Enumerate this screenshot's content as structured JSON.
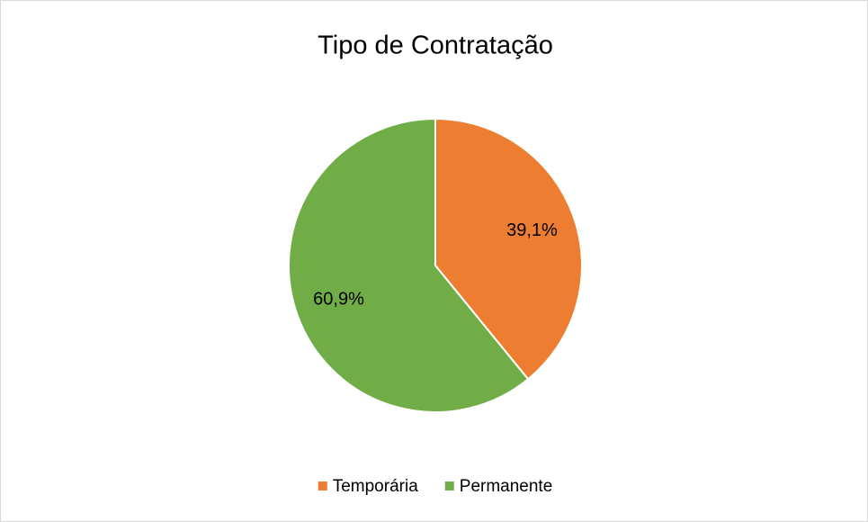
{
  "chart_data": {
    "type": "pie",
    "title": "Tipo de Contratação",
    "categories": [
      "Temporária",
      "Permanente"
    ],
    "values": [
      39.1,
      60.9
    ],
    "value_labels": [
      "39,1%",
      "60,9%"
    ],
    "colors": [
      "#ed7d31",
      "#70ad47"
    ],
    "legend": "bottom"
  }
}
